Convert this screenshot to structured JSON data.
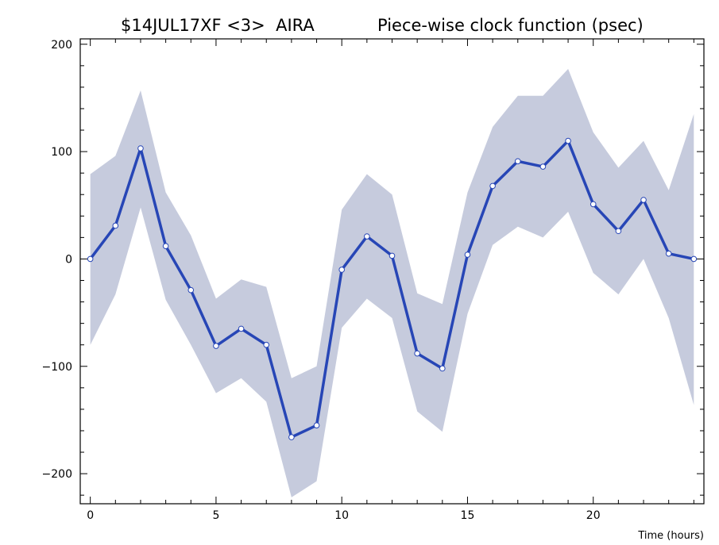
{
  "chart_data": {
    "type": "line",
    "title_left": "$14JUL17XF <3>  AIRA",
    "title_right": "Piece-wise clock function (psec)",
    "xlabel": "Time (hours)",
    "ylabel": "",
    "xlim": [
      -0.4,
      24.4
    ],
    "ylim": [
      -228,
      205
    ],
    "xticks": [
      0,
      5,
      10,
      15,
      20
    ],
    "yticks": [
      -200,
      -100,
      0,
      100,
      200
    ],
    "grid": false,
    "colors": {
      "band": "#c6cbdd",
      "line": "#2746b6",
      "marker_fill": "#ffffff",
      "marker_edge": "#2746b6",
      "frame": "#000000"
    },
    "series": [
      {
        "x": [
          0,
          1,
          2,
          3,
          4,
          5,
          6,
          7,
          8,
          9,
          10,
          11,
          12,
          13,
          14,
          15,
          16,
          17,
          18,
          19,
          20,
          21,
          22,
          23,
          24
        ],
        "y": [
          0,
          31,
          103,
          12,
          -29,
          -81,
          -65,
          -80,
          -166,
          -155,
          -10,
          21,
          3,
          -88,
          -102,
          4,
          68,
          91,
          86,
          110,
          51,
          26,
          55,
          5,
          0
        ],
        "upper": [
          79,
          96,
          157,
          62,
          22,
          -37,
          -19,
          -26,
          -111,
          -100,
          46,
          79,
          60,
          -32,
          -42,
          62,
          123,
          152,
          152,
          177,
          118,
          85,
          110,
          64,
          135
        ],
        "lower": [
          -80,
          -33,
          48,
          -38,
          -80,
          -125,
          -111,
          -133,
          -222,
          -207,
          -64,
          -37,
          -55,
          -142,
          -161,
          -51,
          13,
          30,
          20,
          44,
          -13,
          -33,
          0,
          -55,
          -136
        ]
      }
    ]
  }
}
